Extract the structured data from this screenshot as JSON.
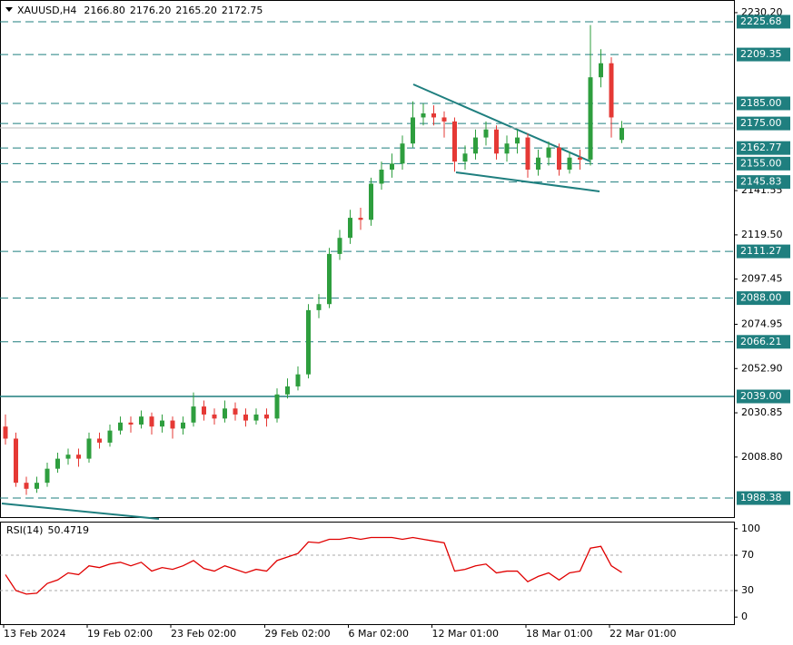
{
  "chart_data": [
    {
      "type": "candlestick",
      "title": "XAUUSD,H4",
      "header_values": [
        {
          "value": 2166.8,
          "label": "2166.80"
        },
        {
          "value": 2176.2,
          "label": "2176.20"
        },
        {
          "value": 2165.2,
          "label": "2165.20"
        },
        2172.75
      ],
      "categories": [
        "13 Feb 2024",
        null,
        null,
        null,
        null,
        null,
        null,
        null,
        "19 Feb 02:00",
        null,
        null,
        null,
        null,
        null,
        null,
        null,
        "23 Feb 02:00",
        null,
        null,
        null,
        null,
        null,
        null,
        null,
        null,
        "29 Feb 02:00",
        null,
        null,
        null,
        null,
        null,
        null,
        null,
        "6 Mar 02:00",
        null,
        null,
        null,
        null,
        null,
        null,
        null,
        "12 Mar 01:00",
        null,
        null,
        null,
        null,
        null,
        null,
        null,
        null,
        "18 Mar 01:00",
        null,
        null,
        null,
        null,
        null,
        null,
        null,
        "22 Mar 01:00",
        null
      ],
      "open": [
        2024,
        2018,
        1996,
        1993,
        1996,
        2003,
        2008,
        2010,
        2008,
        2018,
        2016,
        2022,
        2026,
        2025,
        2029,
        2024,
        2027,
        2023,
        2026,
        2034,
        2030,
        2028,
        2033,
        2030,
        2027,
        2030,
        2028,
        2040,
        2044,
        2050,
        2082,
        2085,
        2110,
        2118,
        2128,
        2127,
        2145,
        2152,
        2155,
        2165,
        2178,
        2180,
        2178,
        2176,
        2156,
        2160,
        2168,
        2172,
        2160,
        2165,
        2168,
        2152,
        2158,
        2163,
        2152,
        2158,
        2157,
        2198,
        2205,
        2166.8
      ],
      "high": [
        2030,
        2021,
        1999,
        1999,
        2006,
        2011,
        2013,
        2013,
        2021,
        2021,
        2025,
        2029,
        2029,
        2032,
        2031,
        2030,
        2029,
        2029,
        2041,
        2037,
        2033,
        2037,
        2036,
        2033,
        2033,
        2033,
        2043,
        2048,
        2054,
        2085,
        2090,
        2113,
        2122,
        2132,
        2133,
        2148,
        2156,
        2160,
        2169,
        2186,
        2185,
        2184,
        2181,
        2178,
        2164,
        2172,
        2176,
        2174,
        2169,
        2172,
        2170,
        2162,
        2166,
        2165,
        2161,
        2162,
        2224,
        2212,
        2208,
        2176.2
      ],
      "low": [
        2015,
        1994,
        1990,
        1991,
        1994,
        2001,
        2005,
        2004,
        2006,
        2013,
        2014,
        2020,
        2021,
        2023,
        2020,
        2021,
        2018,
        2020,
        2024,
        2027,
        2025,
        2026,
        2027,
        2024,
        2025,
        2024,
        2026,
        2038,
        2042,
        2048,
        2078,
        2083,
        2107,
        2115,
        2122,
        2124,
        2142,
        2148,
        2152,
        2163,
        2174,
        2174,
        2168,
        2151,
        2152,
        2157,
        2164,
        2157,
        2156,
        2160,
        2148,
        2149,
        2154,
        2149,
        2150,
        2152,
        2154,
        2193,
        2168,
        2165.2
      ],
      "close": [
        2018,
        1996,
        1993,
        1996,
        2003,
        2008,
        2010,
        2008,
        2018,
        2016,
        2022,
        2026,
        2025,
        2029,
        2024,
        2027,
        2023,
        2026,
        2034,
        2030,
        2028,
        2033,
        2030,
        2027,
        2030,
        2028,
        2040,
        2044,
        2050,
        2082,
        2085,
        2110,
        2118,
        2128,
        2127,
        2145,
        2152,
        2155,
        2165,
        2178,
        2180,
        2178,
        2176,
        2156,
        2160,
        2168,
        2172,
        2160,
        2165,
        2168,
        2152,
        2158,
        2163,
        2152,
        2158,
        2157,
        2198,
        2205,
        2178,
        2172.75
      ],
      "up_color": "#2e9e3e",
      "down_color": "#e53935",
      "ylim": [
        1978.9,
        2236.5
      ],
      "yticks": [
        {
          "value": 2230.2,
          "label": "2230.20"
        },
        2141.55,
        {
          "value": 2119.5,
          "label": "2119.50"
        },
        2097.45,
        2074.95,
        {
          "value": 2052.9,
          "label": "2052.90"
        },
        2030.85,
        {
          "value": 2008.8,
          "label": "2008.80"
        }
      ],
      "levels": [
        2225.68,
        2209.35,
        {
          "value": 2185,
          "label": "2185.00"
        },
        {
          "value": 2175,
          "label": "2175.00"
        },
        2162.77,
        {
          "value": 2155,
          "label": "2155.00"
        },
        2145.83,
        2111.27,
        {
          "value": 2088,
          "label": "2088.00"
        },
        2066.21,
        {
          "value": 2039,
          "label": "2039.00"
        },
        1988.38
      ],
      "level_styles": [
        "dashed",
        "dashed",
        "dashed",
        "dashed",
        "dashed",
        "dashed",
        "dashed",
        "dashed",
        "dashed",
        "dashed",
        "solid",
        "dashed"
      ],
      "level_color": "#1f7f7f"
    },
    {
      "type": "line",
      "title": "RSI(14)",
      "values": [
        48,
        30,
        26,
        27,
        38,
        42,
        50,
        48,
        58,
        56,
        60,
        62,
        58,
        62,
        52,
        56,
        54,
        58,
        64,
        55,
        52,
        58,
        54,
        50,
        54,
        52,
        64,
        68,
        72,
        85,
        84,
        88,
        88,
        90,
        88,
        90,
        90,
        90,
        88,
        90,
        88,
        86,
        84,
        52,
        54,
        58,
        60,
        50,
        52,
        52,
        40,
        46,
        50,
        42,
        50,
        52,
        78,
        80,
        58,
        50.4719
      ],
      "color": "#e00000",
      "ylim": [
        -8,
        108
      ],
      "yticks": [
        100,
        70,
        30,
        0
      ],
      "levels": [
        70,
        30
      ]
    }
  ]
}
